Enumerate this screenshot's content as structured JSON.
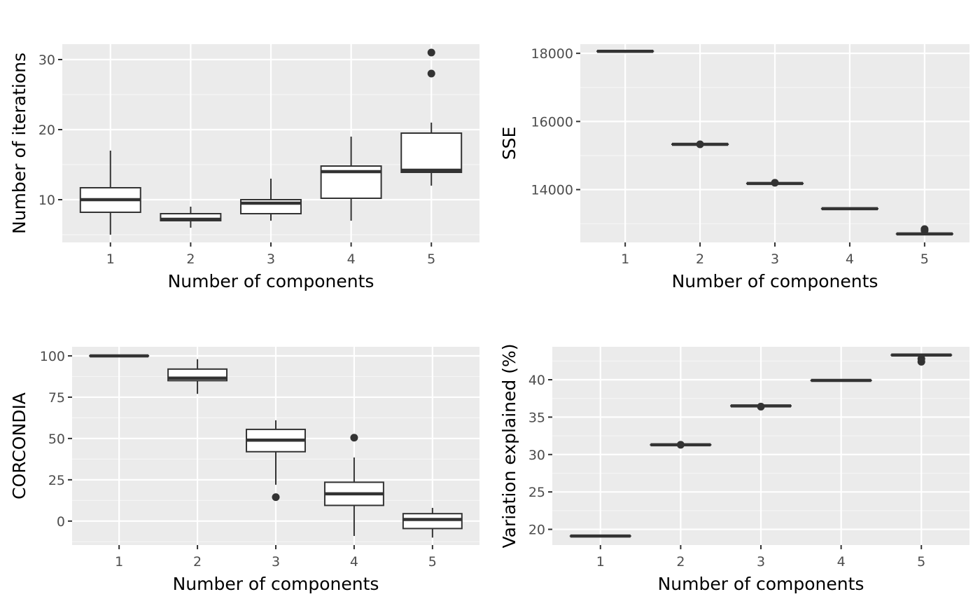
{
  "colors": {
    "panel_background": "#ebebeb",
    "major_grid": "#ffffff",
    "minor_grid": "#f5f5f5",
    "box_stroke": "#333333",
    "box_fill": "#ffffff",
    "tick_text": "#4d4d4d",
    "tick_mark": "#333333"
  },
  "chart_data": [
    {
      "type": "box",
      "xlabel": "Number of components",
      "ylabel": "Number of iterations",
      "categories": [
        "1",
        "2",
        "3",
        "4",
        "5"
      ],
      "yticks": [
        10,
        20,
        30
      ],
      "ylim": [
        3.9,
        32.2
      ],
      "grid": true,
      "boxes": [
        {
          "category": "1",
          "min": 5,
          "q1": 8.2,
          "median": 10,
          "q3": 11.7,
          "max": 17,
          "outliers": []
        },
        {
          "category": "2",
          "min": 6,
          "q1": 7.0,
          "median": 7.2,
          "q3": 8.0,
          "max": 9,
          "outliers": []
        },
        {
          "category": "3",
          "min": 7,
          "q1": 8.0,
          "median": 9.5,
          "q3": 10.0,
          "max": 13,
          "outliers": []
        },
        {
          "category": "4",
          "min": 7,
          "q1": 10.2,
          "median": 14.0,
          "q3": 14.8,
          "max": 19,
          "outliers": []
        },
        {
          "category": "5",
          "min": 12,
          "q1": 13.9,
          "median": 14.2,
          "q3": 19.5,
          "max": 21,
          "outliers": [
            28,
            31
          ]
        }
      ]
    },
    {
      "type": "box",
      "xlabel": "Number of components",
      "ylabel": "SSE",
      "categories": [
        "1",
        "2",
        "3",
        "4",
        "5"
      ],
      "yticks": [
        14000,
        16000,
        18000
      ],
      "ylim": [
        12450,
        18270
      ],
      "grid": true,
      "boxes": [
        {
          "category": "1",
          "min": 18060,
          "q1": 18060,
          "median": 18060,
          "q3": 18060,
          "max": 18060,
          "outliers": []
        },
        {
          "category": "2",
          "min": 15330,
          "q1": 15330,
          "median": 15330,
          "q3": 15330,
          "max": 15330,
          "outliers": [
            15330
          ]
        },
        {
          "category": "3",
          "min": 14180,
          "q1": 14180,
          "median": 14180,
          "q3": 14180,
          "max": 14180,
          "outliers": [
            14200
          ]
        },
        {
          "category": "4",
          "min": 13440,
          "q1": 13440,
          "median": 13440,
          "q3": 13440,
          "max": 13440,
          "outliers": []
        },
        {
          "category": "5",
          "min": 12700,
          "q1": 12700,
          "median": 12700,
          "q3": 12700,
          "max": 12700,
          "outliers": [
            12840,
            12800
          ]
        }
      ]
    },
    {
      "type": "box",
      "xlabel": "Number of components",
      "ylabel": "CORCONDIA",
      "categories": [
        "1",
        "2",
        "3",
        "4",
        "5"
      ],
      "yticks": [
        0,
        25,
        50,
        75,
        100
      ],
      "ylim": [
        -14.5,
        105.5
      ],
      "grid": true,
      "boxes": [
        {
          "category": "1",
          "min": 100,
          "q1": 100,
          "median": 100,
          "q3": 100,
          "max": 100,
          "outliers": []
        },
        {
          "category": "2",
          "min": 77,
          "q1": 85,
          "median": 86.5,
          "q3": 92,
          "max": 98,
          "outliers": []
        },
        {
          "category": "3",
          "min": 22,
          "q1": 42,
          "median": 49,
          "q3": 55.5,
          "max": 61,
          "outliers": [
            14.5
          ]
        },
        {
          "category": "4",
          "min": -9,
          "q1": 9.5,
          "median": 16.5,
          "q3": 23.5,
          "max": 38.5,
          "outliers": [
            50.5
          ]
        },
        {
          "category": "5",
          "min": -10,
          "q1": -4.5,
          "median": 1,
          "q3": 4.5,
          "max": 8,
          "outliers": []
        }
      ]
    },
    {
      "type": "box",
      "xlabel": "Number of components",
      "ylabel": "Variation explained (%)",
      "categories": [
        "1",
        "2",
        "3",
        "4",
        "5"
      ],
      "yticks": [
        20,
        25,
        30,
        35,
        40
      ],
      "ylim": [
        17.9,
        44.4
      ],
      "grid": true,
      "boxes": [
        {
          "category": "1",
          "min": 19.1,
          "q1": 19.1,
          "median": 19.1,
          "q3": 19.1,
          "max": 19.1,
          "outliers": []
        },
        {
          "category": "2",
          "min": 31.3,
          "q1": 31.3,
          "median": 31.3,
          "q3": 31.3,
          "max": 31.3,
          "outliers": [
            31.3
          ]
        },
        {
          "category": "3",
          "min": 36.5,
          "q1": 36.5,
          "median": 36.5,
          "q3": 36.5,
          "max": 36.5,
          "outliers": [
            36.4
          ]
        },
        {
          "category": "4",
          "min": 39.9,
          "q1": 39.9,
          "median": 39.9,
          "q3": 39.9,
          "max": 39.9,
          "outliers": []
        },
        {
          "category": "5",
          "min": 43.3,
          "q1": 43.3,
          "median": 43.3,
          "q3": 43.3,
          "max": 43.3,
          "outliers": [
            42.8,
            42.4
          ]
        }
      ]
    }
  ]
}
